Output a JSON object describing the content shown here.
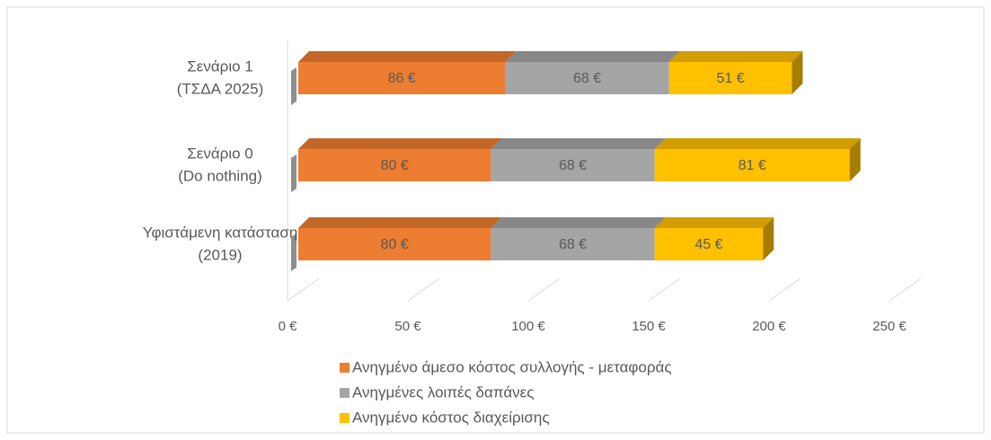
{
  "chart_data": {
    "type": "bar3d-stacked-horizontal",
    "categories": [
      [
        "Σενάριο 1",
        "(ΤΣΔΑ 2025)"
      ],
      [
        "Σενάριο 0",
        "(Do nothing)"
      ],
      [
        "Υφιστάμενη κατάσταση",
        "(2019)"
      ]
    ],
    "series": [
      {
        "name": "Ανηγμένο άμεσο κόστος συλλογής - μεταφοράς",
        "color": "#ED7D31",
        "values": [
          86,
          80,
          80
        ],
        "value_labels": [
          "86 €",
          "80 €",
          "80 €"
        ]
      },
      {
        "name": "Ανηγμένες λοιπές δαπάνες",
        "color": "#A5A5A5",
        "values": [
          68,
          68,
          68
        ],
        "value_labels": [
          "68 €",
          "68 €",
          "68 €"
        ]
      },
      {
        "name": "Ανηγμένο κόστος διαχείρισης",
        "color": "#FFC000",
        "values": [
          51,
          81,
          45
        ],
        "value_labels": [
          "51 €",
          "81 €",
          "45 €"
        ]
      }
    ],
    "xlim": [
      0,
      250
    ],
    "xticks": [
      {
        "value": 0,
        "label": "0 €"
      },
      {
        "value": 50,
        "label": "50 €"
      },
      {
        "value": 100,
        "label": "100 €"
      },
      {
        "value": 150,
        "label": "150 €"
      },
      {
        "value": 200,
        "label": "200 €"
      },
      {
        "value": 250,
        "label": "250 €"
      }
    ],
    "grid": true,
    "legend": "bottom"
  }
}
